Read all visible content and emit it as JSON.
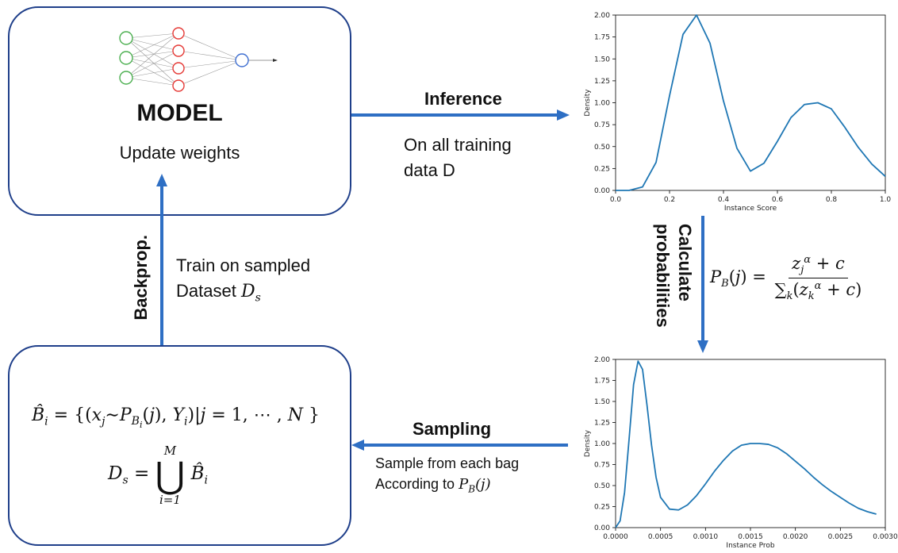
{
  "model_box": {
    "title": "MODEL",
    "subtitle": "Update weights",
    "icon": "neural-network-icon"
  },
  "inference": {
    "label": "Inference",
    "desc_line1": "On all training",
    "desc_line2": "data D"
  },
  "calculate": {
    "label_line1": "Calculate",
    "label_line2": "probabilities",
    "formula_lhs": "P_B(j) =",
    "formula_num": "z_j^α + c",
    "formula_den": "∑_k(z_k^α + c)"
  },
  "sampling": {
    "label": "Sampling",
    "desc_line1": "Sample from each bag",
    "desc_line2": "According to P_B(j)"
  },
  "backprop": {
    "label": "Backprop.",
    "desc_line1": "Train on sampled",
    "desc_line2": "Dataset D_s"
  },
  "data_box": {
    "formula_bag": "B̂_i = {(x_j ∼ P_{B_i}(j), Y_i) | j = 1, ⋯ , N }",
    "formula_ds": "D_s = ⋃_{i=1}^{M} B̂_i"
  },
  "colors": {
    "arrow": "#2e6fc4",
    "box_border": "#1f3f8a",
    "curve": "#1f77b4"
  },
  "chart_data": [
    {
      "type": "line",
      "xlabel": "Instance Score",
      "ylabel": "Density",
      "xlim": [
        0.0,
        1.0
      ],
      "ylim": [
        0.0,
        2.0
      ],
      "xticks": [
        "0.0",
        "0.2",
        "0.4",
        "0.6",
        "0.8",
        "1.0"
      ],
      "yticks": [
        "0.00",
        "0.25",
        "0.50",
        "0.75",
        "1.00",
        "1.25",
        "1.50",
        "1.75",
        "2.00"
      ],
      "x": [
        0.0,
        0.05,
        0.1,
        0.15,
        0.2,
        0.25,
        0.3,
        0.35,
        0.4,
        0.45,
        0.5,
        0.55,
        0.6,
        0.65,
        0.7,
        0.75,
        0.8,
        0.85,
        0.9,
        0.95,
        1.0
      ],
      "y": [
        0.0,
        0.0,
        0.04,
        0.32,
        1.08,
        1.78,
        2.0,
        1.68,
        1.02,
        0.48,
        0.22,
        0.31,
        0.56,
        0.83,
        0.98,
        1.0,
        0.93,
        0.72,
        0.49,
        0.3,
        0.16
      ]
    },
    {
      "type": "line",
      "xlabel": "Instance Prob",
      "ylabel": "Density",
      "xlim": [
        0.0,
        0.003
      ],
      "ylim": [
        0.0,
        2.0
      ],
      "xticks": [
        "0.0000",
        "0.0005",
        "0.0010",
        "0.0015",
        "0.0020",
        "0.0025",
        "0.0030"
      ],
      "yticks": [
        "0.00",
        "0.25",
        "0.50",
        "0.75",
        "1.00",
        "1.25",
        "1.50",
        "1.75",
        "2.00"
      ],
      "x": [
        0.0,
        5e-05,
        0.0001,
        0.00015,
        0.0002,
        0.00025,
        0.0003,
        0.00035,
        0.0004,
        0.00045,
        0.0005,
        0.0006,
        0.0007,
        0.0008,
        0.0009,
        0.001,
        0.0011,
        0.0012,
        0.0013,
        0.0014,
        0.0015,
        0.0016,
        0.0017,
        0.0018,
        0.0019,
        0.002,
        0.0021,
        0.0022,
        0.0023,
        0.0024,
        0.0025,
        0.0026,
        0.0027,
        0.0028,
        0.0029
      ],
      "y": [
        0.0,
        0.08,
        0.42,
        1.05,
        1.7,
        1.98,
        1.88,
        1.45,
        0.98,
        0.6,
        0.36,
        0.22,
        0.21,
        0.27,
        0.38,
        0.52,
        0.67,
        0.8,
        0.91,
        0.98,
        1.0,
        1.0,
        0.99,
        0.95,
        0.88,
        0.79,
        0.7,
        0.6,
        0.51,
        0.43,
        0.36,
        0.29,
        0.23,
        0.19,
        0.16
      ]
    }
  ]
}
